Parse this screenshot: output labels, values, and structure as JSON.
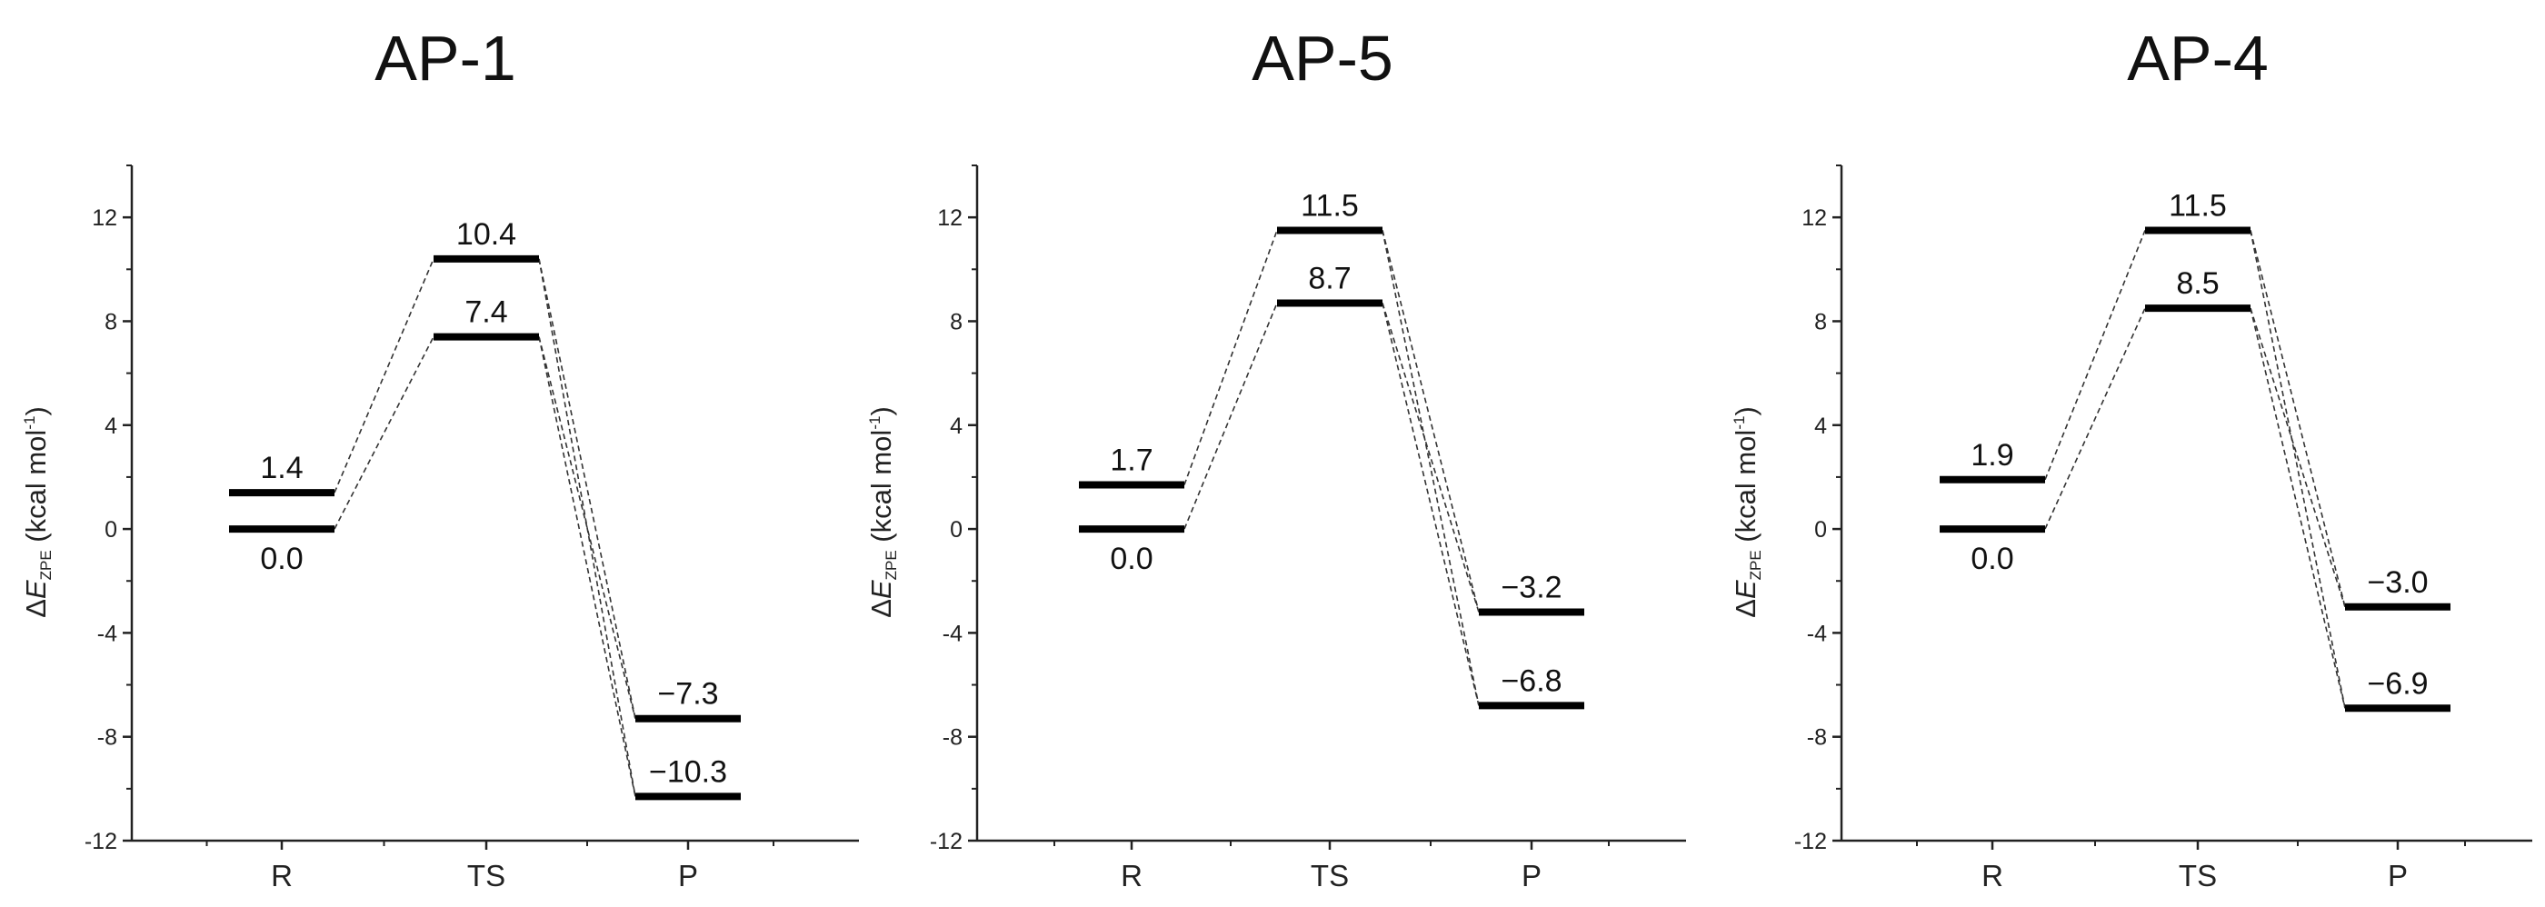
{
  "chart_data": [
    {
      "type": "energy-level-diagram",
      "title": "AP-1",
      "ylabel": {
        "prefix": "ΔE",
        "subscript": "ZPE",
        "unit": "(kcal mol",
        "sup": "-1",
        "close": ")"
      },
      "ylim": [
        -12,
        14
      ],
      "yticks": [
        -12,
        -8,
        -4,
        0,
        4,
        8,
        12
      ],
      "ytick_labels": [
        "-12",
        "-8",
        "-4",
        "0",
        "4",
        "8",
        "12"
      ],
      "categories": [
        "R",
        "TS",
        "P"
      ],
      "levels": [
        {
          "category": "R",
          "value": 1.4,
          "label": "1.4",
          "label_pos": "above"
        },
        {
          "category": "R",
          "value": 0.0,
          "label": "0.0",
          "label_pos": "below"
        },
        {
          "category": "TS",
          "value": 10.4,
          "label": "10.4",
          "label_pos": "above"
        },
        {
          "category": "TS",
          "value": 7.4,
          "label": "7.4",
          "label_pos": "above"
        },
        {
          "category": "P",
          "value": -7.3,
          "label": "−7.3",
          "label_pos": "above"
        },
        {
          "category": "P",
          "value": -10.3,
          "label": "−10.3",
          "label_pos": "above"
        }
      ],
      "connections": [
        {
          "from": [
            0,
            0
          ],
          "to": [
            1,
            0
          ]
        },
        {
          "from": [
            0,
            1
          ],
          "to": [
            1,
            1
          ]
        },
        {
          "from": [
            1,
            0
          ],
          "to": [
            2,
            0
          ]
        },
        {
          "from": [
            1,
            0
          ],
          "to": [
            2,
            1
          ]
        },
        {
          "from": [
            1,
            1
          ],
          "to": [
            2,
            0
          ]
        },
        {
          "from": [
            1,
            1
          ],
          "to": [
            2,
            1
          ]
        }
      ]
    },
    {
      "type": "energy-level-diagram",
      "title": "AP-5",
      "ylabel": {
        "prefix": "ΔE",
        "subscript": "ZPE",
        "unit": "(kcal mol",
        "sup": "-1",
        "close": ")"
      },
      "ylim": [
        -12,
        14
      ],
      "yticks": [
        -12,
        -8,
        -4,
        0,
        4,
        8,
        12
      ],
      "ytick_labels": [
        "-12",
        "-8",
        "-4",
        "0",
        "4",
        "8",
        "12"
      ],
      "categories": [
        "R",
        "TS",
        "P"
      ],
      "levels": [
        {
          "category": "R",
          "value": 1.7,
          "label": "1.7",
          "label_pos": "above"
        },
        {
          "category": "R",
          "value": 0.0,
          "label": "0.0",
          "label_pos": "below"
        },
        {
          "category": "TS",
          "value": 11.5,
          "label": "11.5",
          "label_pos": "above"
        },
        {
          "category": "TS",
          "value": 8.7,
          "label": "8.7",
          "label_pos": "above"
        },
        {
          "category": "P",
          "value": -3.2,
          "label": "−3.2",
          "label_pos": "above"
        },
        {
          "category": "P",
          "value": -6.8,
          "label": "−6.8",
          "label_pos": "above"
        }
      ],
      "connections": [
        {
          "from": [
            0,
            0
          ],
          "to": [
            1,
            0
          ]
        },
        {
          "from": [
            0,
            1
          ],
          "to": [
            1,
            1
          ]
        },
        {
          "from": [
            1,
            0
          ],
          "to": [
            2,
            0
          ]
        },
        {
          "from": [
            1,
            0
          ],
          "to": [
            2,
            1
          ]
        },
        {
          "from": [
            1,
            1
          ],
          "to": [
            2,
            0
          ]
        },
        {
          "from": [
            1,
            1
          ],
          "to": [
            2,
            1
          ]
        }
      ]
    },
    {
      "type": "energy-level-diagram",
      "title": "AP-4",
      "ylabel": {
        "prefix": "ΔE",
        "subscript": "ZPE",
        "unit": "(kcal mol",
        "sup": "-1",
        "close": ")"
      },
      "ylim": [
        -12,
        14
      ],
      "yticks": [
        -12,
        -8,
        -4,
        0,
        4,
        8,
        12
      ],
      "ytick_labels": [
        "-12",
        "-8",
        "-4",
        "0",
        "4",
        "8",
        "12"
      ],
      "categories": [
        "R",
        "TS",
        "P"
      ],
      "levels": [
        {
          "category": "R",
          "value": 1.9,
          "label": "1.9",
          "label_pos": "above"
        },
        {
          "category": "R",
          "value": 0.0,
          "label": "0.0",
          "label_pos": "below"
        },
        {
          "category": "TS",
          "value": 11.5,
          "label": "11.5",
          "label_pos": "above"
        },
        {
          "category": "TS",
          "value": 8.5,
          "label": "8.5",
          "label_pos": "above"
        },
        {
          "category": "P",
          "value": -3.0,
          "label": "−3.0",
          "label_pos": "above"
        },
        {
          "category": "P",
          "value": -6.9,
          "label": "−6.9",
          "label_pos": "above"
        }
      ],
      "connections": [
        {
          "from": [
            0,
            0
          ],
          "to": [
            1,
            0
          ]
        },
        {
          "from": [
            0,
            1
          ],
          "to": [
            1,
            1
          ]
        },
        {
          "from": [
            1,
            0
          ],
          "to": [
            2,
            0
          ]
        },
        {
          "from": [
            1,
            0
          ],
          "to": [
            2,
            1
          ]
        },
        {
          "from": [
            1,
            1
          ],
          "to": [
            2,
            0
          ]
        },
        {
          "from": [
            1,
            1
          ],
          "to": [
            2,
            1
          ]
        }
      ]
    }
  ]
}
